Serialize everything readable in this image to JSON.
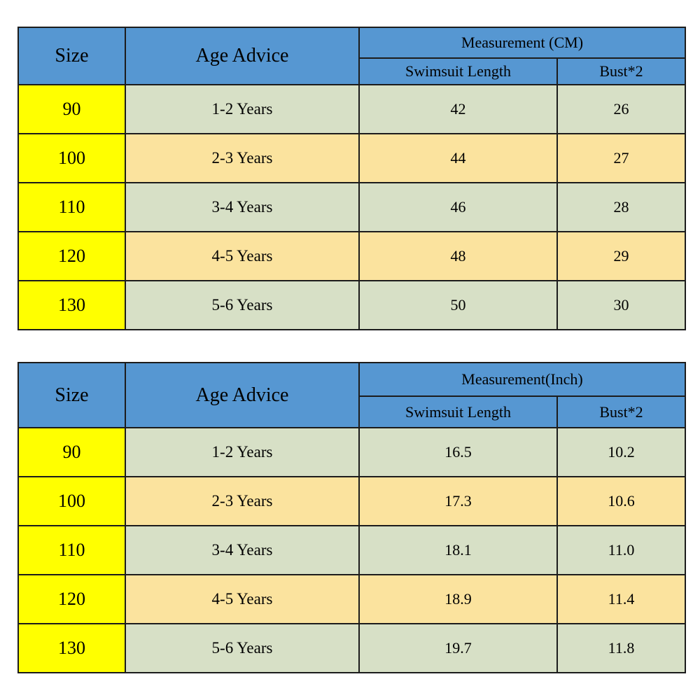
{
  "colors": {
    "background": "#FFFFFF",
    "header_blue": "#5697D2",
    "header_text_navy": "#1F3864",
    "size_column_yellow": "#FFFF00",
    "row_green": "#D7E0C6",
    "row_tan": "#FBE39E",
    "border": "#1C1C1C",
    "body_text": "#000000"
  },
  "chart_data": [
    {
      "type": "table",
      "title": "Measurement (CM)",
      "columns": [
        "Size",
        "Age Advice",
        "Swimsuit Length",
        "Bust*2"
      ],
      "header": {
        "size": "Size",
        "age_advice": "Age Advice",
        "measurement_group": "Measurement (CM)",
        "swimsuit_length": "Swimsuit Length",
        "bust": "Bust*2"
      },
      "rows": [
        {
          "size": "90",
          "age_advice": "1-2 Years",
          "swimsuit_length": "42",
          "bust": "26"
        },
        {
          "size": "100",
          "age_advice": "2-3 Years",
          "swimsuit_length": "44",
          "bust": "27"
        },
        {
          "size": "110",
          "age_advice": "3-4 Years",
          "swimsuit_length": "46",
          "bust": "28"
        },
        {
          "size": "120",
          "age_advice": "4-5 Years",
          "swimsuit_length": "48",
          "bust": "29"
        },
        {
          "size": "130",
          "age_advice": "5-6 Years",
          "swimsuit_length": "50",
          "bust": "30"
        }
      ]
    },
    {
      "type": "table",
      "title": "Measurement(Inch)",
      "columns": [
        "Size",
        "Age Advice",
        "Swimsuit Length",
        "Bust*2"
      ],
      "header": {
        "size": "Size",
        "age_advice": "Age Advice",
        "measurement_group": "Measurement(Inch)",
        "swimsuit_length": "Swimsuit Length",
        "bust": "Bust*2"
      },
      "rows": [
        {
          "size": "90",
          "age_advice": "1-2 Years",
          "swimsuit_length": "16.5",
          "bust": "10.2"
        },
        {
          "size": "100",
          "age_advice": "2-3 Years",
          "swimsuit_length": "17.3",
          "bust": "10.6"
        },
        {
          "size": "110",
          "age_advice": "3-4 Years",
          "swimsuit_length": "18.1",
          "bust": "11.0"
        },
        {
          "size": "120",
          "age_advice": "4-5 Years",
          "swimsuit_length": "18.9",
          "bust": "11.4"
        },
        {
          "size": "130",
          "age_advice": "5-6 Years",
          "swimsuit_length": "19.7",
          "bust": "11.8"
        }
      ]
    }
  ]
}
